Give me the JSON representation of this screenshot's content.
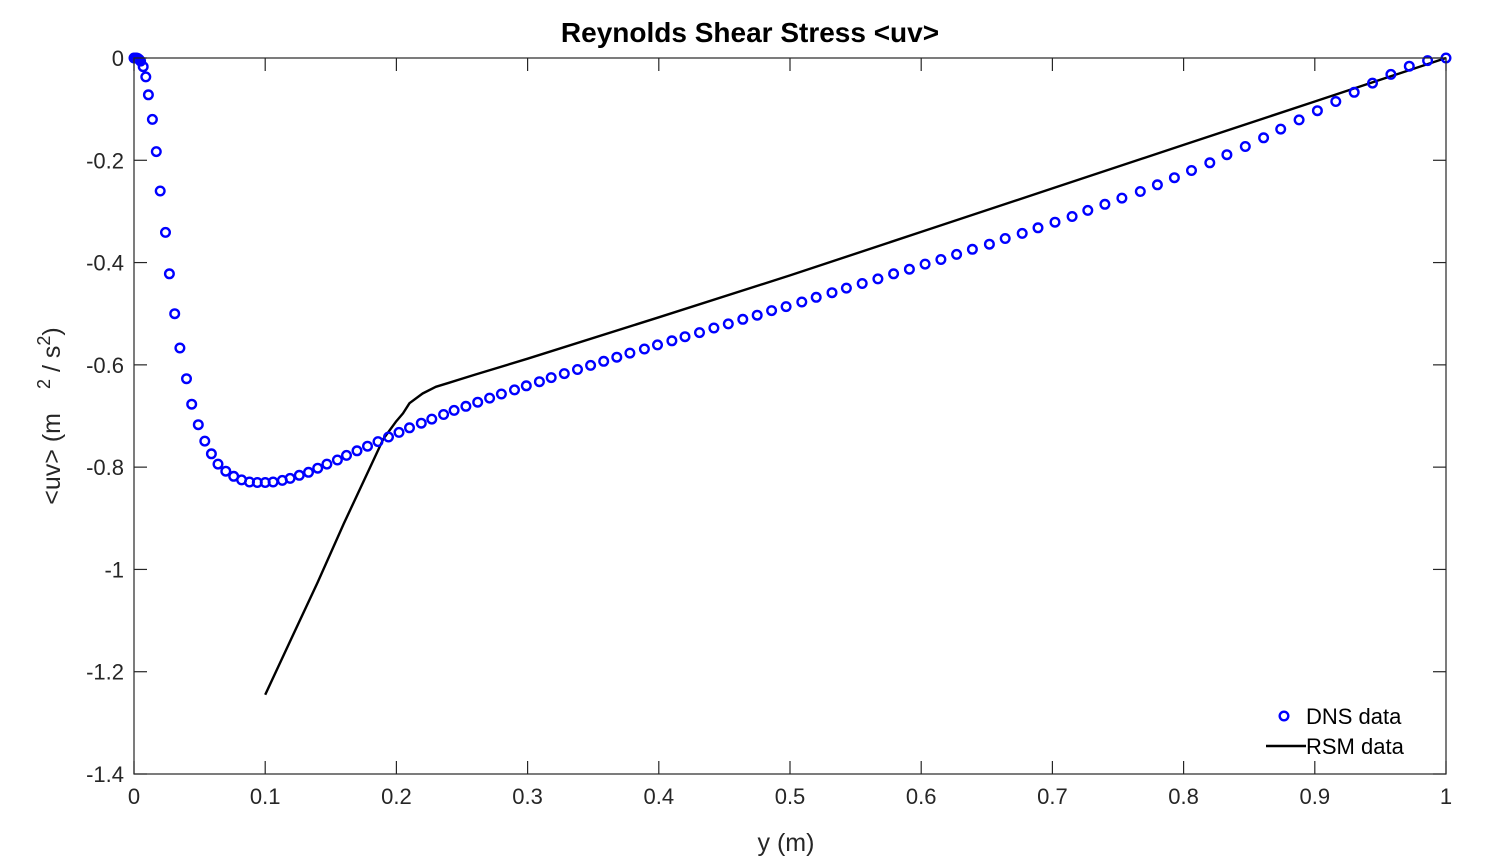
{
  "chart_data": {
    "type": "line",
    "title": "Reynolds Shear Stress <uv>",
    "xlabel": "y (m)",
    "ylabel_parts": [
      "<uv> (m",
      "2",
      " / s",
      "2",
      ")"
    ],
    "xlim": [
      0,
      1
    ],
    "ylim": [
      -1.4,
      0
    ],
    "x_ticks": [
      0,
      0.1,
      0.2,
      0.3,
      0.4,
      0.5,
      0.6,
      0.7,
      0.8,
      0.9,
      1
    ],
    "x_tick_labels": [
      "0",
      "0.1",
      "0.2",
      "0.3",
      "0.4",
      "0.5",
      "0.6",
      "0.7",
      "0.8",
      "0.9",
      "1"
    ],
    "y_ticks": [
      0,
      -0.2,
      -0.4,
      -0.6,
      -0.8,
      -1,
      -1.2,
      -1.4
    ],
    "y_tick_labels": [
      "0",
      "-0.2",
      "-0.4",
      "-0.6",
      "-0.8",
      "-1",
      "-1.2",
      "-1.4"
    ],
    "grid": false,
    "legend_position": "bottom-right",
    "series": [
      {
        "name": "DNS data",
        "style": "markers",
        "color": "#0000ff",
        "x": [
          0,
          0.001,
          0.002,
          0.003,
          0.004,
          0.005,
          0.007,
          0.009,
          0.011,
          0.014,
          0.017,
          0.02,
          0.024,
          0.027,
          0.031,
          0.035,
          0.04,
          0.044,
          0.049,
          0.054,
          0.059,
          0.064,
          0.07,
          0.076,
          0.082,
          0.088,
          0.094,
          0.1,
          0.106,
          0.113,
          0.119,
          0.126,
          0.133,
          0.14,
          0.147,
          0.155,
          0.162,
          0.17,
          0.178,
          0.186,
          0.194,
          0.202,
          0.21,
          0.219,
          0.227,
          0.236,
          0.244,
          0.253,
          0.262,
          0.271,
          0.28,
          0.29,
          0.299,
          0.309,
          0.318,
          0.328,
          0.338,
          0.348,
          0.358,
          0.368,
          0.378,
          0.389,
          0.399,
          0.41,
          0.42,
          0.431,
          0.442,
          0.453,
          0.464,
          0.475,
          0.486,
          0.497,
          0.509,
          0.52,
          0.532,
          0.543,
          0.555,
          0.567,
          0.579,
          0.591,
          0.603,
          0.615,
          0.627,
          0.639,
          0.652,
          0.664,
          0.677,
          0.689,
          0.702,
          0.715,
          0.727,
          0.74,
          0.753,
          0.767,
          0.78,
          0.793,
          0.806,
          0.82,
          0.833,
          0.847,
          0.861,
          0.874,
          0.888,
          0.902,
          0.916,
          0.93,
          0.944,
          0.958,
          0.972,
          0.986,
          1.0
        ],
        "y": [
          0,
          0,
          0,
          -0.001,
          -0.003,
          -0.006,
          -0.017,
          -0.037,
          -0.072,
          -0.12,
          -0.183,
          -0.26,
          -0.341,
          -0.422,
          -0.5,
          -0.567,
          -0.627,
          -0.677,
          -0.717,
          -0.749,
          -0.774,
          -0.794,
          -0.808,
          -0.818,
          -0.825,
          -0.829,
          -0.83,
          -0.83,
          -0.829,
          -0.826,
          -0.822,
          -0.816,
          -0.81,
          -0.802,
          -0.794,
          -0.786,
          -0.777,
          -0.768,
          -0.759,
          -0.75,
          -0.741,
          -0.732,
          -0.723,
          -0.714,
          -0.706,
          -0.697,
          -0.689,
          -0.681,
          -0.673,
          -0.665,
          -0.657,
          -0.649,
          -0.641,
          -0.633,
          -0.625,
          -0.617,
          -0.609,
          -0.601,
          -0.593,
          -0.585,
          -0.577,
          -0.569,
          -0.561,
          -0.553,
          -0.545,
          -0.537,
          -0.528,
          -0.52,
          -0.511,
          -0.503,
          -0.494,
          -0.486,
          -0.477,
          -0.468,
          -0.459,
          -0.45,
          -0.441,
          -0.432,
          -0.422,
          -0.413,
          -0.403,
          -0.394,
          -0.384,
          -0.374,
          -0.364,
          -0.353,
          -0.343,
          -0.332,
          -0.321,
          -0.31,
          -0.298,
          -0.286,
          -0.274,
          -0.261,
          -0.248,
          -0.234,
          -0.22,
          -0.205,
          -0.189,
          -0.173,
          -0.156,
          -0.139,
          -0.121,
          -0.103,
          -0.085,
          -0.067,
          -0.049,
          -0.032,
          -0.016,
          -0.005,
          0
        ]
      },
      {
        "name": "RSM data",
        "style": "line",
        "color": "#000000",
        "x": [
          0.1,
          0.12,
          0.14,
          0.16,
          0.18,
          0.19,
          0.2,
          0.205,
          0.21,
          0.22,
          0.23,
          0.24,
          0.26,
          0.3,
          0.4,
          0.5,
          0.6,
          0.7,
          0.8,
          0.9,
          1.0
        ],
        "y": [
          -1.245,
          -1.135,
          -1.025,
          -0.91,
          -0.8,
          -0.745,
          -0.71,
          -0.695,
          -0.675,
          -0.656,
          -0.643,
          -0.635,
          -0.619,
          -0.588,
          -0.507,
          -0.425,
          -0.34,
          -0.255,
          -0.17,
          -0.085,
          0
        ]
      }
    ]
  }
}
